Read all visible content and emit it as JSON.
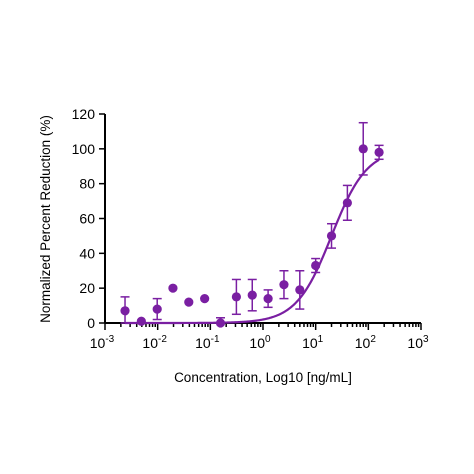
{
  "chart_data": {
    "type": "scatter",
    "xlabel": "Concentration, Log10 [ng/mL]",
    "ylabel": "Normalized Percent Reduction (%)",
    "x_scale": "log",
    "xlim": [
      0.001,
      1000
    ],
    "ylim": [
      0,
      120
    ],
    "yticks": [
      0,
      20,
      40,
      60,
      80,
      100,
      120
    ],
    "xticks": [
      {
        "value": 0.001,
        "base": "10",
        "exp": "-3"
      },
      {
        "value": 0.01,
        "base": "10",
        "exp": "-2"
      },
      {
        "value": 0.1,
        "base": "10",
        "exp": "-1"
      },
      {
        "value": 1,
        "base": "10",
        "exp": "0"
      },
      {
        "value": 10,
        "base": "10",
        "exp": "1"
      },
      {
        "value": 100,
        "base": "10",
        "exp": "2"
      },
      {
        "value": 1000,
        "base": "10",
        "exp": "3"
      }
    ],
    "grid": false,
    "color": "#7a1fa2",
    "points": [
      {
        "x": 0.0024,
        "y": 7,
        "err": 8
      },
      {
        "x": 0.0049,
        "y": 1,
        "err": 0
      },
      {
        "x": 0.0098,
        "y": 8,
        "err": 6
      },
      {
        "x": 0.0195,
        "y": 20,
        "err": 0
      },
      {
        "x": 0.039,
        "y": 12,
        "err": 0
      },
      {
        "x": 0.078,
        "y": 14,
        "err": 0
      },
      {
        "x": 0.156,
        "y": 0,
        "err": 3
      },
      {
        "x": 0.3125,
        "y": 15,
        "err": 10
      },
      {
        "x": 0.625,
        "y": 16,
        "err": 9
      },
      {
        "x": 1.25,
        "y": 14,
        "err": 5
      },
      {
        "x": 2.5,
        "y": 22,
        "err": 8
      },
      {
        "x": 5,
        "y": 19,
        "err": 11
      },
      {
        "x": 10,
        "y": 33,
        "err": 4
      },
      {
        "x": 20,
        "y": 50,
        "err": 7
      },
      {
        "x": 40,
        "y": 69,
        "err": 10
      },
      {
        "x": 80,
        "y": 100,
        "err": 15
      },
      {
        "x": 160,
        "y": 98,
        "err": 4
      }
    ],
    "fit": {
      "model": "4PL",
      "bottom": 0,
      "top": 100,
      "ec50": 20,
      "hill": 1.3,
      "x_range": [
        0.0024,
        160
      ]
    }
  }
}
